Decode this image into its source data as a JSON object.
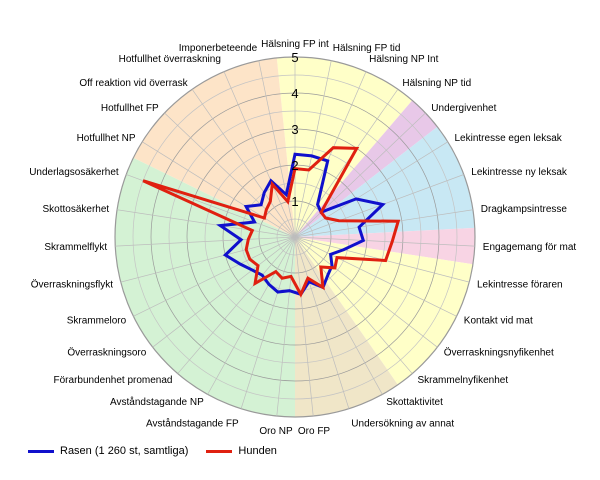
{
  "chart_data": {
    "type": "radar",
    "title": "",
    "rmax": 5,
    "ticks": [
      "1",
      "2",
      "3",
      "4",
      "5"
    ],
    "categories": [
      "Hälsning FP int",
      "Hälsning FP tid",
      "Hälsning NP Int",
      "Hälsning NP tid",
      "Undergivenhet",
      "Lekintresse egen leksak",
      "Lekintresse ny leksak",
      "Dragkampsintresse",
      "Engagemang för mat",
      "Lekintresse föraren",
      "Kontakt vid mat",
      "Överraskningsnyfikenhet",
      "Skrammelnyfikenhet",
      "Skottaktivitet",
      "Undersökning av annat",
      "Oro FP",
      "Oro NP",
      "Avståndstagande FP",
      "Avståndstagande NP",
      "Förarbundenhet promenad",
      "Överraskningsoro",
      "Skrammeloro",
      "Överraskningsflykt",
      "Skrammelflykt",
      "Skottosäkerhet",
      "Underlagsosäkerhet",
      "Hotfullhet NP",
      "Hotfullhet FP",
      "Off reaktion vid överrask",
      "Hotfullhet överraskning",
      "Imponerbeteende"
    ],
    "sectors": [
      {
        "from": 0,
        "to": 3,
        "color": "#ffffc8"
      },
      {
        "from": 4,
        "to": 4,
        "color": "#e8c8e8"
      },
      {
        "from": 5,
        "to": 7,
        "color": "#c8e8f4"
      },
      {
        "from": 8,
        "to": 8,
        "color": "#f8d4e4"
      },
      {
        "from": 9,
        "to": 12,
        "color": "#ffffc8"
      },
      {
        "from": 13,
        "to": 15,
        "color": "#f0e6c8"
      },
      {
        "from": 16,
        "to": 25,
        "color": "#d4f2d4"
      },
      {
        "from": 26,
        "to": 30,
        "color": "#fde4c8"
      }
    ],
    "series": [
      {
        "name": "Rasen (1 260 st, samtliga)",
        "color": "#1010cc",
        "values": [
          2.3,
          2.3,
          2.3,
          1.1,
          1.0,
          2.0,
          2.6,
          1.8,
          1.9,
          1.4,
          1.1,
          1.3,
          1.4,
          1.6,
          1.3,
          1.6,
          1.5,
          1.6,
          1.5,
          1.4,
          1.5,
          1.7,
          2.0,
          1.5,
          2.1,
          1.2,
          1.6,
          1.3,
          1.5,
          1.7,
          1.2
        ]
      },
      {
        "name": "Hunden",
        "color": "#e02010",
        "values": [
          1.9,
          1.9,
          2.7,
          3.0,
          1.0,
          1.0,
          1.3,
          2.9,
          2.7,
          2.6,
          1.3,
          1.4,
          1.1,
          1.6,
          1.2,
          1.6,
          1.1,
          1.2,
          1.1,
          1.7,
          1.3,
          1.4,
          1.4,
          1.3,
          1.2,
          4.5,
          1.0,
          1.1,
          1.2,
          1.6,
          1.0
        ]
      }
    ]
  },
  "legend": {
    "items": [
      {
        "label": "Rasen (1 260 st, samtliga)",
        "color": "#1010cc"
      },
      {
        "label": "Hunden",
        "color": "#e02010"
      }
    ]
  }
}
